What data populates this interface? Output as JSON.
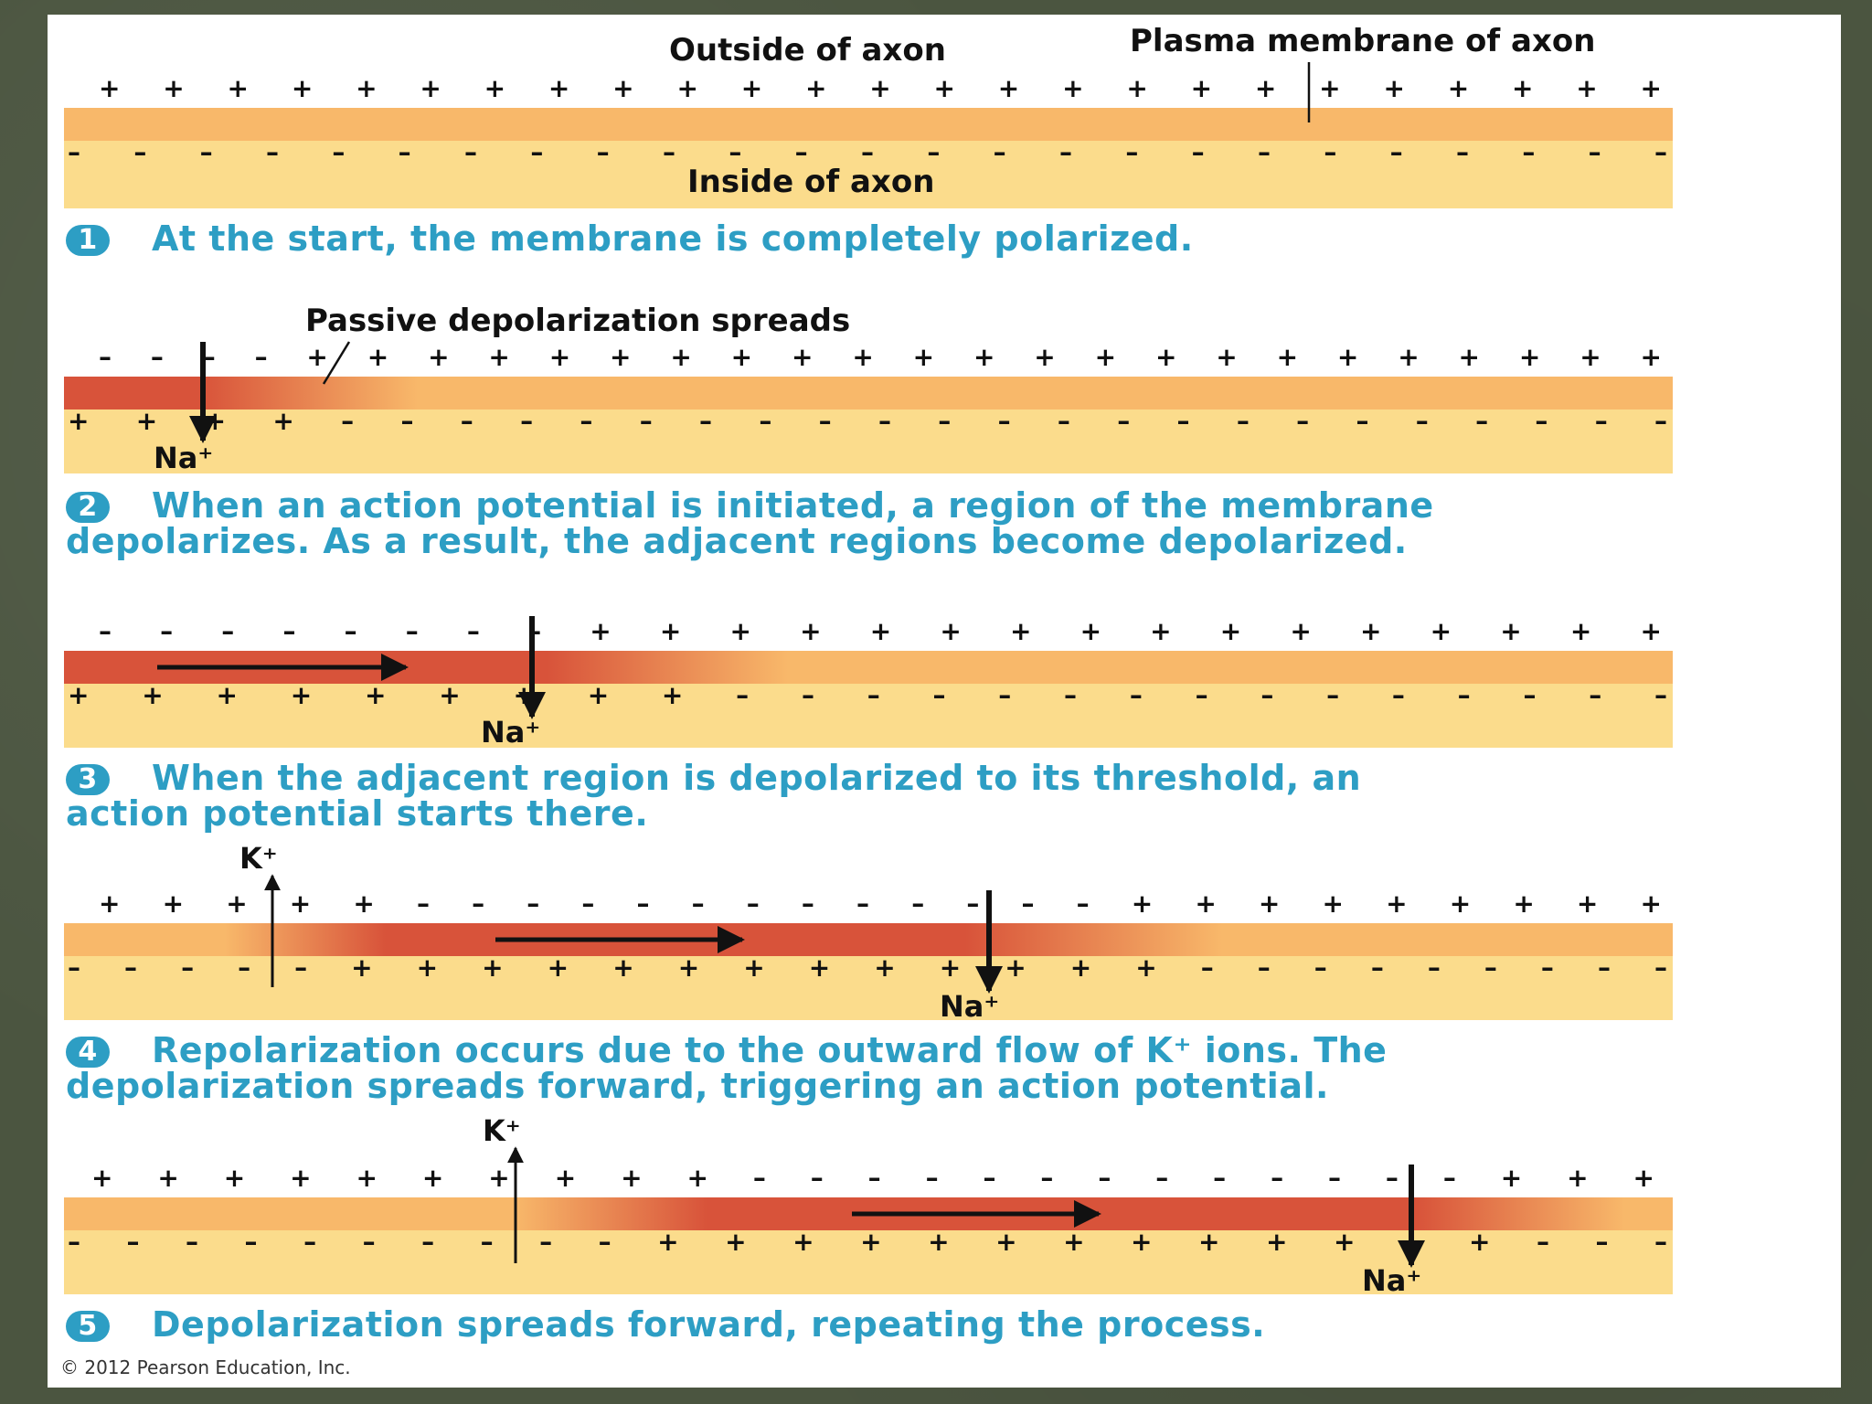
{
  "labels": {
    "outside": "Outside of axon",
    "membrane": "Plasma membrane of axon",
    "inside": "Inside of axon",
    "passive": "Passive depolarization spreads",
    "na": "Na⁺",
    "k": "K⁺"
  },
  "steps": [
    {
      "number": "1",
      "caption_lines": [
        "At the start, the membrane is completely polarized."
      ]
    },
    {
      "number": "2",
      "caption_lines": [
        "When an action potential is initiated, a region of the membrane",
        "depolarizes. As a result, the adjacent regions become depolarized."
      ]
    },
    {
      "number": "3",
      "caption_lines": [
        "When the adjacent region is depolarized to its threshold, an",
        "action potential starts there."
      ]
    },
    {
      "number": "4",
      "caption_lines": [
        "Repolarization occurs due to the outward flow of K⁺ ions. The",
        "depolarization spreads forward, triggering an action potential."
      ]
    },
    {
      "number": "5",
      "caption_lines": [
        "Depolarization spreads forward, repeating the process."
      ]
    }
  ],
  "charge_rows": [
    {
      "outside": "+ + + + + + + + + + + + + + + + + + + + + + + + +",
      "inside": "– – – – – – – – – – – – – – – – – – – – – – – – –"
    },
    {
      "outside": "– – – – + + + + + + + + + + + + + + + + + + + + + + +",
      "inside": "+ + + + – – – – – – – – – – – – – – – – – – – – – – –"
    },
    {
      "outside": "– – – – – – – – + + + + + + + + + + + + + + + +",
      "inside": "+ + + + + + + + + – – – – – – – – – – – – – – –"
    },
    {
      "outside": "+ + + + + – – – – – – – – – – – – – + + + + + + + + +",
      "inside": "– – – – – + + + + + + + + + + + + + – – – – – – – – –"
    },
    {
      "outside": "+ + + + + + + + + + – – – – – – – – – – – – – + + +",
      "inside": "– – – – – – – – – – + + + + + + + + + + + + + – – –"
    }
  ],
  "colors": {
    "caption": "#2d9ec4",
    "membrane_polarized": "#f8b86a",
    "membrane_depolarized": "#d8533a",
    "cytoplasm": "#fbdc8c",
    "background": "#4b5540"
  },
  "copyright": "© 2012 Pearson Education, Inc."
}
